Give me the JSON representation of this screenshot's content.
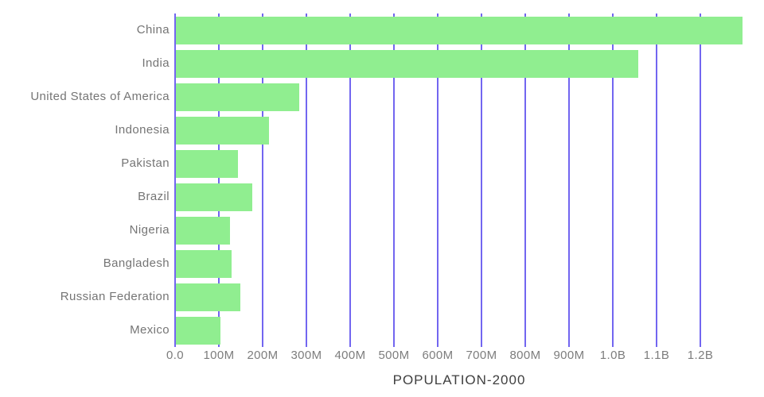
{
  "title": "POPULATION-2000",
  "colors": {
    "bar": "#90EE90",
    "gridline": "#7266F0",
    "country_label": "#757575",
    "tick_label": "#7D7D7D",
    "title": "#3F3F3F",
    "background": "#FFFFFF"
  },
  "chart_data": {
    "type": "bar",
    "orientation": "horizontal",
    "title": "POPULATION-2000",
    "xlabel": "POPULATION-2000",
    "ylabel": "",
    "categories": [
      "China",
      "India",
      "United States of America",
      "Indonesia",
      "Pakistan",
      "Brazil",
      "Nigeria",
      "Bangladesh",
      "Russian Federation",
      "Mexico"
    ],
    "values_millions": [
      1295,
      1057,
      282,
      212,
      142,
      175,
      123,
      128,
      148,
      101
    ],
    "x_tick_labels": [
      "0.0",
      "100M",
      "200M",
      "300M",
      "400M",
      "500M",
      "600M",
      "700M",
      "800M",
      "900M",
      "1.0B",
      "1.1B",
      "1.2B"
    ],
    "x_tick_values_millions": [
      0,
      100,
      200,
      300,
      400,
      500,
      600,
      700,
      800,
      900,
      1000,
      1100,
      1200
    ],
    "xlim_millions": [
      0,
      1300
    ],
    "grid": "vertical-only",
    "legend": "none"
  }
}
